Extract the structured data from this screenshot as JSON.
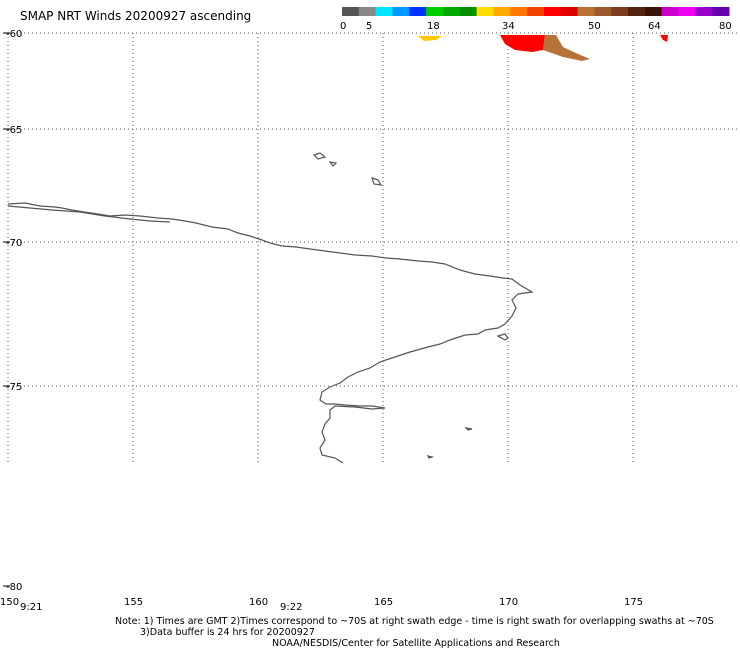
{
  "title": "SMAP NRT Winds 20200927 ascending",
  "colorbar": {
    "ticks": [
      "0",
      "5",
      "18",
      "34",
      "50",
      "64",
      "80"
    ],
    "segments": [
      "#555555",
      "#888888",
      "#00e5ff",
      "#0099ff",
      "#0033ff",
      "#00cc00",
      "#00aa00",
      "#009000",
      "#ffdd00",
      "#ffaa00",
      "#ff7700",
      "#ee4400",
      "#ff0000",
      "#dd0000",
      "#b87333",
      "#9b5a2e",
      "#7a3e1f",
      "#552211",
      "#3a1208",
      "#cc00cc",
      "#ee00ee",
      "#9900cc",
      "#6600aa"
    ]
  },
  "axes": {
    "lon_labels": [
      "150",
      "155",
      "160",
      "165",
      "170",
      "175"
    ],
    "lat_labels": [
      "-60",
      "-65",
      "-70",
      "-75",
      "-80"
    ]
  },
  "times": [
    "9:21",
    "9:22"
  ],
  "notes": {
    "line1": "Note: 1) Times are GMT 2)Times correspond to ~70S at right swath edge - time is right swath for overlapping swaths at ~70S",
    "line2": "3)Data buffer is 24 hrs for 20200927",
    "line3": "NOAA/NESDIS/Center for Satellite Applications and Research"
  }
}
